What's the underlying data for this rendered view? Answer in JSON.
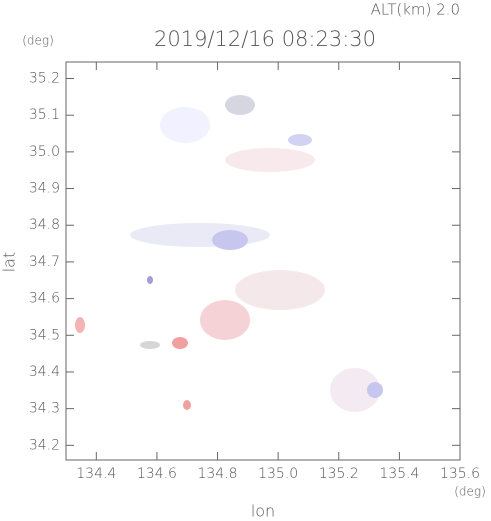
{
  "chart_data": {
    "type": "map",
    "title": "2019/12/16 08:23:30",
    "annotation": "ALT(km) 2.0",
    "xlabel": "lon",
    "ylabel": "lat",
    "x_unit": "(deg)",
    "y_unit": "(deg)",
    "xlim": [
      134.3,
      135.6
    ],
    "ylim": [
      34.16,
      35.245
    ],
    "xticks": [
      134.4,
      134.6,
      134.8,
      {
        "value": 135,
        "label": "135.0"
      },
      135.2,
      135.4,
      135.6
    ],
    "yticks": [
      34.2,
      34.3,
      34.4,
      34.5,
      34.6,
      34.7,
      34.8,
      34.9,
      {
        "value": 35,
        "label": "35.0"
      },
      35.1,
      35.2
    ]
  }
}
